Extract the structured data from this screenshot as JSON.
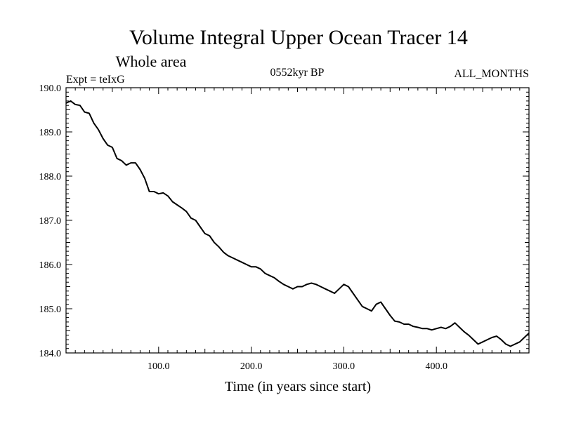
{
  "chart_data": {
    "type": "line",
    "title": "Volume Integral Upper Ocean Tracer 14",
    "subtitle": "Whole area",
    "expt_label": "Expt = teIxG",
    "period_label": "0552kyr BP",
    "months_label": "ALL_MONTHS",
    "xlabel": "Time (in years since start)",
    "ylabel": "",
    "xlim": [
      0,
      500
    ],
    "ylim": [
      184.0,
      190.0
    ],
    "xticks": [
      100,
      200,
      300,
      400
    ],
    "xtick_labels": [
      "100.0",
      "200.0",
      "300.0",
      "400.0"
    ],
    "yticks": [
      184.0,
      185.0,
      186.0,
      187.0,
      188.0,
      189.0,
      190.0
    ],
    "ytick_labels": [
      "184.0",
      "185.0",
      "186.0",
      "187.0",
      "188.0",
      "189.0",
      "190.0"
    ],
    "grid": false,
    "series": [
      {
        "color": "#000000",
        "x": [
          0,
          5,
          10,
          15,
          20,
          25,
          30,
          35,
          40,
          45,
          50,
          55,
          60,
          65,
          70,
          75,
          80,
          85,
          90,
          95,
          100,
          105,
          110,
          115,
          120,
          125,
          130,
          135,
          140,
          145,
          150,
          155,
          160,
          165,
          170,
          175,
          180,
          185,
          190,
          195,
          200,
          205,
          210,
          215,
          220,
          225,
          230,
          235,
          240,
          245,
          250,
          255,
          260,
          265,
          270,
          275,
          280,
          285,
          290,
          295,
          300,
          305,
          310,
          315,
          320,
          325,
          330,
          335,
          340,
          345,
          350,
          355,
          360,
          365,
          370,
          375,
          380,
          385,
          390,
          395,
          400,
          405,
          410,
          415,
          420,
          425,
          430,
          435,
          440,
          445,
          450,
          455,
          460,
          465,
          470,
          475,
          480,
          485,
          490,
          495,
          500
        ],
        "values": [
          189.65,
          189.7,
          189.62,
          189.6,
          189.45,
          189.42,
          189.2,
          189.05,
          188.85,
          188.7,
          188.65,
          188.4,
          188.35,
          188.25,
          188.3,
          188.3,
          188.15,
          187.95,
          187.65,
          187.65,
          187.6,
          187.62,
          187.55,
          187.42,
          187.35,
          187.28,
          187.2,
          187.05,
          187.0,
          186.85,
          186.7,
          186.65,
          186.5,
          186.4,
          186.28,
          186.2,
          186.15,
          186.1,
          186.05,
          186.0,
          185.95,
          185.95,
          185.9,
          185.8,
          185.75,
          185.7,
          185.62,
          185.55,
          185.5,
          185.45,
          185.5,
          185.5,
          185.55,
          185.58,
          185.55,
          185.5,
          185.45,
          185.4,
          185.35,
          185.45,
          185.55,
          185.5,
          185.35,
          185.2,
          185.05,
          185.0,
          184.95,
          185.1,
          185.15,
          185.0,
          184.85,
          184.72,
          184.7,
          184.65,
          184.65,
          184.6,
          184.58,
          184.55,
          184.55,
          184.52,
          184.55,
          184.58,
          184.55,
          184.6,
          184.68,
          184.58,
          184.48,
          184.4,
          184.3,
          184.2,
          184.25,
          184.3,
          184.35,
          184.38,
          184.3,
          184.2,
          184.15,
          184.2,
          184.25,
          184.35,
          184.45
        ]
      }
    ]
  }
}
